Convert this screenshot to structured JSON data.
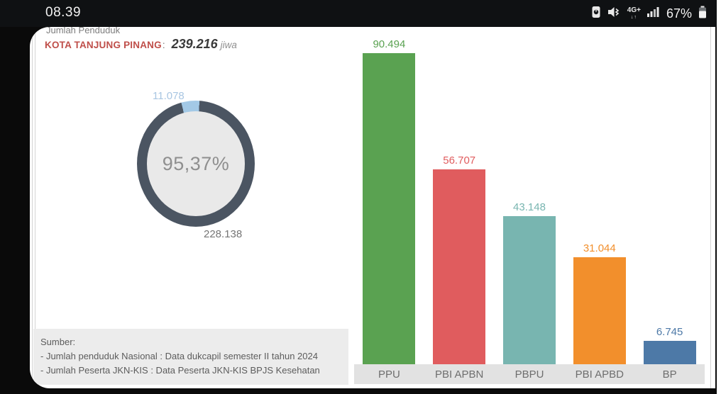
{
  "status_bar": {
    "time": "08.39",
    "network_label": "4G+",
    "network_arrows": "↓↑",
    "battery_percent": "67%",
    "icons": [
      "battery-saver-icon",
      "mute-vibrate-icon",
      "network-type-icon",
      "signal-strength-icon",
      "battery-icon"
    ]
  },
  "header": {
    "subtitle": "Jumlah Penduduk",
    "region_label": "KOTA TANJUNG PINANG",
    "colon": ":",
    "population_value": "239.216",
    "population_unit": "jiwa"
  },
  "colors": {
    "title_red": "#bf4e49",
    "donut_dark": "#4b5562",
    "donut_light": "#a3c9e6",
    "band_gray": "#e2e2e2"
  },
  "chart_data": [
    {
      "type": "donut",
      "center_label": "95,37%",
      "segments": [
        {
          "label": "228.138",
          "value": 228138,
          "color": "#4b5562"
        },
        {
          "label": "11.078",
          "value": 11078,
          "color": "#a3c9e6"
        }
      ]
    },
    {
      "type": "bar",
      "categories": [
        "PPU",
        "PBI APBN",
        "PBPU",
        "PBI APBD",
        "BP"
      ],
      "values": [
        90494,
        56707,
        43148,
        31044,
        6745
      ],
      "labels": [
        "90.494",
        "56.707",
        "43.148",
        "31.044",
        "6.745"
      ],
      "colors": [
        "#5aa251",
        "#e05c5e",
        "#78b5b0",
        "#f28f2c",
        "#4d79a7"
      ],
      "ylim": [
        0,
        90494
      ],
      "grid": false,
      "legend": false
    }
  ],
  "footer": {
    "lines": [
      "Sumber:",
      "- Jumlah penduduk Nasional : Data dukcapil semester II tahun 2024",
      "- Jumlah Peserta JKN-KIS : Data Peserta JKN-KIS BPJS Kesehatan"
    ]
  }
}
